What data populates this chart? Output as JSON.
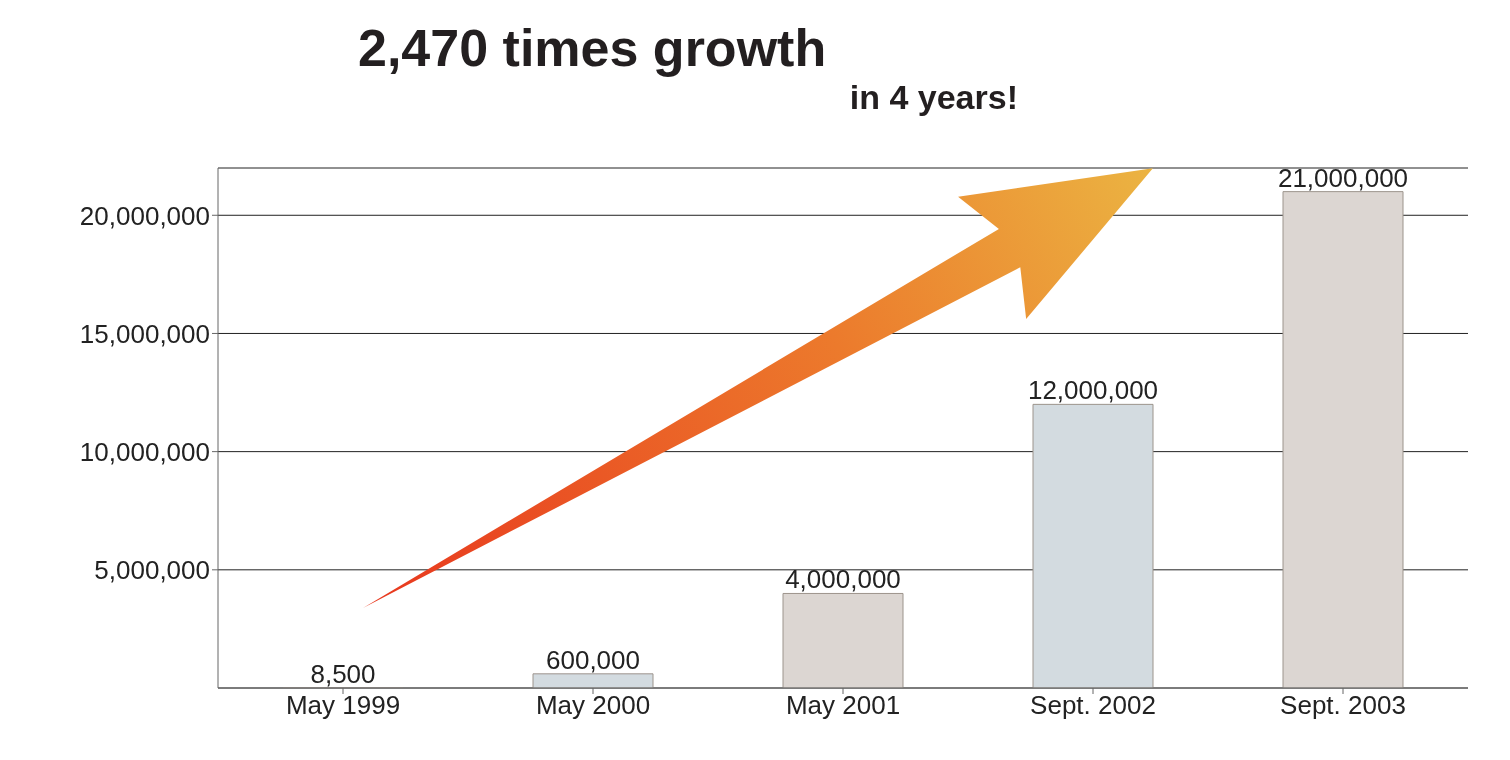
{
  "chart_data": {
    "type": "bar",
    "title": "2,470 times growth",
    "subtitle": "in 4 years!",
    "categories": [
      "May 1999",
      "May 2000",
      "May 2001",
      "Sept. 2002",
      "Sept. 2003"
    ],
    "values": [
      8500,
      600000,
      4000000,
      12000000,
      21000000
    ],
    "value_labels": [
      "8,500",
      "600,000",
      "4,000,000",
      "12,000,000",
      "21,000,000"
    ],
    "colors": [
      "#dcd6d2",
      "#d3dbe0",
      "#dcd6d2",
      "#d3dbe0",
      "#dcd6d2"
    ],
    "ylim": [
      0,
      22000000
    ],
    "yticks": [
      {
        "value": 5000000,
        "label": "5,000,000"
      },
      {
        "value": 10000000,
        "label": "10,000,000"
      },
      {
        "value": 15000000,
        "label": "15,000,000"
      },
      {
        "value": 20000000,
        "label": "20,000,000"
      }
    ],
    "grid": "y"
  }
}
